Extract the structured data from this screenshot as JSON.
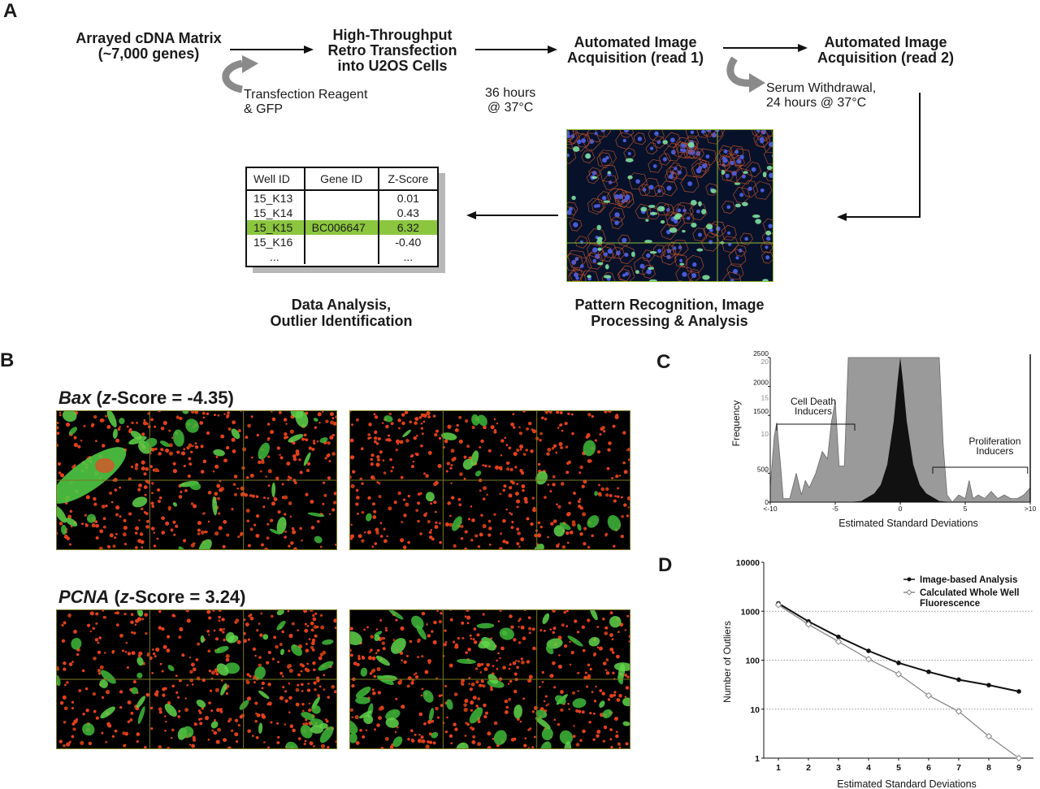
{
  "panels": {
    "a": "A",
    "b": "B",
    "c": "C",
    "d": "D"
  },
  "panelA": {
    "step1": [
      "Arrayed cDNA Matrix",
      "(~7,000 genes)"
    ],
    "step2": [
      "High-Throughput",
      "Retro Transfection",
      "into U2OS Cells"
    ],
    "step3": [
      "Automated Image",
      "Acquisition (read 1)"
    ],
    "step4": [
      "Automated Image",
      "Acquisition (read 2)"
    ],
    "note1": [
      "Transfection Reagent",
      "& GFP"
    ],
    "note2": [
      "36 hours",
      "@ 37°C"
    ],
    "note3": [
      "Serum Withdrawal,",
      "24 hours @ 37°C"
    ],
    "caption_analysis": [
      "Data Analysis,",
      "Outlier Identification"
    ],
    "caption_pattern": [
      "Pattern Recognition, Image",
      "Processing & Analysis"
    ],
    "table": {
      "headers": [
        "Well ID",
        "Gene ID",
        "Z-Score"
      ],
      "rows": [
        [
          "15_K13",
          "",
          "0.01"
        ],
        [
          "15_K14",
          "",
          "0.43"
        ],
        [
          "15_K15",
          "BC006647",
          "6.32"
        ],
        [
          "15_K16",
          "",
          "-0.40"
        ],
        [
          "...",
          "",
          "..."
        ]
      ],
      "highlight_row": 2,
      "highlight_color": "#8cc63f"
    }
  },
  "panelB": {
    "bax_gene": "Bax",
    "bax_rest": " (",
    "bax_z": "z",
    "bax_score": "-Score = -4.35)",
    "pcna_gene": "PCNA",
    "pcna_rest": " (",
    "pcna_z": "z",
    "pcna_score": "-Score = 3.24)"
  },
  "chart_data": [
    {
      "type": "area",
      "panel": "C",
      "xlabel": "Estimated Standard Deviations",
      "ylabel": "Frequency",
      "x_tick_labels": [
        "<-10",
        "-5",
        "0",
        "5",
        ">10"
      ],
      "x_ticks": [
        -10,
        -5,
        0,
        5,
        10
      ],
      "y_ticks_outer": [
        0,
        500,
        1500,
        2000,
        2500
      ],
      "y_ticks_inner": [
        5,
        10,
        15,
        20
      ],
      "xlim": [
        -10,
        10
      ],
      "annotations": [
        {
          "text": [
            "Cell Death",
            "Inducers"
          ],
          "x_range": [
            -10,
            -3.5
          ]
        },
        {
          "text": [
            "Proliferation",
            "Inducers"
          ],
          "x_range": [
            2.5,
            10
          ]
        }
      ],
      "series": [
        {
          "color": "#9a9a9a",
          "x": [
            -10,
            -9.7,
            -9.5,
            -9.2,
            -9,
            -8.5,
            -8,
            -7.6,
            -7.3,
            -7,
            -6.5,
            -6,
            -5.6,
            -5.3,
            -5,
            -4.7,
            -4.3,
            -4,
            -3.5,
            -3,
            -2.5,
            -2,
            0,
            2,
            2.5,
            3,
            3.3,
            3.6,
            4,
            4.5,
            5,
            5.3,
            5.6,
            6,
            6.5,
            7,
            7.5,
            8,
            8.5,
            9,
            9.5,
            10
          ],
          "y": [
            2,
            9,
            11,
            5,
            0.5,
            0.5,
            4,
            1,
            3,
            2,
            4,
            7,
            6,
            11,
            14,
            5,
            5,
            20,
            20,
            20,
            20,
            20,
            20,
            20,
            20,
            20,
            8,
            1,
            0,
            1,
            0.5,
            3,
            0.5,
            1,
            0.5,
            1.5,
            0.5,
            1,
            0.5,
            0.5,
            1,
            2
          ]
        },
        {
          "color": "#111111",
          "x": [
            -4,
            -3,
            -2,
            -1.5,
            -1,
            -0.5,
            -0.2,
            0,
            0.2,
            0.5,
            1,
            1.5,
            2,
            3,
            4
          ],
          "y": [
            0,
            20,
            150,
            300,
            650,
            1400,
            2100,
            2500,
            2100,
            1400,
            650,
            300,
            150,
            20,
            0
          ]
        }
      ]
    },
    {
      "type": "line",
      "panel": "D",
      "xlabel": "Estimated Standard Deviations",
      "ylabel": "Number of Outliers",
      "yscale": "log",
      "ylim": [
        1,
        10000
      ],
      "y_tick_labels": [
        "1",
        "10",
        "100",
        "1000",
        "10000"
      ],
      "x": [
        1,
        2,
        3,
        4,
        5,
        6,
        7,
        8,
        9
      ],
      "grid": "horizontal dotted",
      "legend": "top-right",
      "series": [
        {
          "name": "Image-based Analysis",
          "color": "#111111",
          "marker": "circle",
          "values": [
            1450,
            620,
            300,
            155,
            88,
            58,
            40,
            31,
            23
          ]
        },
        {
          "name": "Calculated Whole Well Fluorescence",
          "color": "#888888",
          "marker": "diamond",
          "values": [
            1350,
            540,
            240,
            105,
            52,
            19,
            9,
            2.8,
            1
          ]
        }
      ]
    }
  ]
}
